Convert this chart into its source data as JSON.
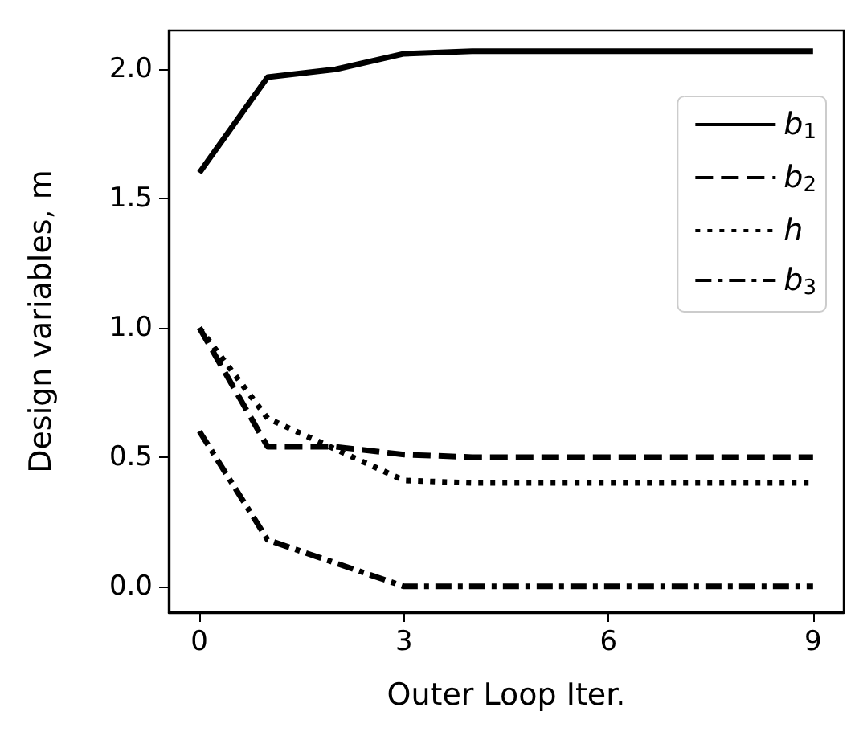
{
  "chart_data": {
    "type": "line",
    "xlabel": "Outer Loop Iter.",
    "ylabel": "Design variables, m",
    "x": [
      0,
      1,
      2,
      3,
      4,
      5,
      6,
      7,
      8,
      9
    ],
    "series": [
      {
        "name": "b$_{1}$",
        "color": "#000000",
        "line_style": "solid",
        "values": [
          1.6,
          1.97,
          2.0,
          2.06,
          2.07,
          2.07,
          2.07,
          2.07,
          2.07,
          2.07
        ]
      },
      {
        "name": "b$_{2}$",
        "color": "#000000",
        "line_style": "dashed",
        "values": [
          1.0,
          0.54,
          0.54,
          0.51,
          0.5,
          0.5,
          0.5,
          0.5,
          0.5,
          0.5
        ]
      },
      {
        "name": "h",
        "color": "#000000",
        "line_style": "dotted",
        "values": [
          1.0,
          0.65,
          0.53,
          0.41,
          0.4,
          0.4,
          0.4,
          0.4,
          0.4,
          0.4
        ]
      },
      {
        "name": "b$_{3}$",
        "color": "#000000",
        "line_style": "dashdot",
        "values": [
          0.6,
          0.18,
          0.09,
          0.0,
          0.0,
          0.0,
          0.0,
          0.0,
          0.0,
          0.0
        ]
      }
    ],
    "xlim": [
      -0.45,
      9.45
    ],
    "xticks": [
      0,
      3,
      6,
      9
    ],
    "ylim": [
      -0.1,
      2.15
    ],
    "yticks": [
      {
        "value": 0,
        "label": "0.0"
      },
      0.5,
      {
        "value": 1,
        "label": "1.0"
      },
      1.5,
      {
        "value": 2,
        "label": "2.0"
      }
    ],
    "grid": false,
    "legend": "top right",
    "marker": "none"
  }
}
